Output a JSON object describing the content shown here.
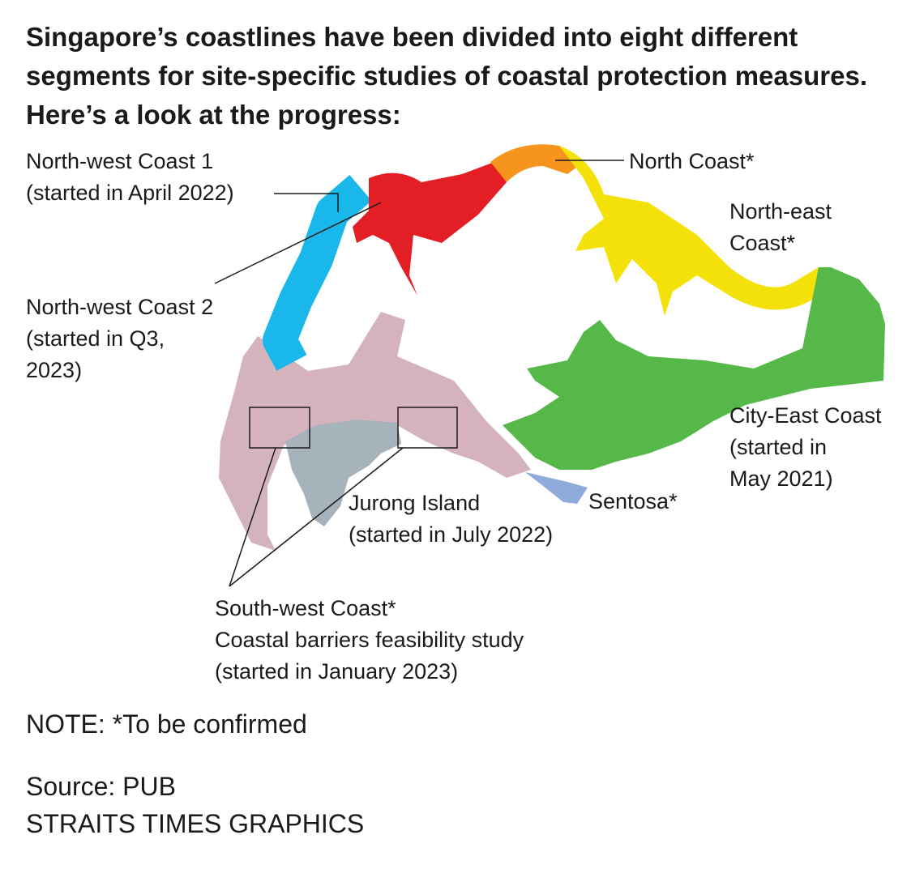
{
  "title": "Singapore’s coastlines have been divided into eight different segments for site-specific studies of coastal protection measures. Here’s a look at the progress:",
  "segments": {
    "nw1": {
      "name": "North-west Coast 1",
      "status": "(started in April 2022)",
      "color": "#1ab8ea"
    },
    "nw2": {
      "name": "North-west Coast 2",
      "status1": "(started in Q3,",
      "status2": "2023)",
      "color": "#e31e24"
    },
    "north": {
      "name": "North Coast*",
      "color": "#f7941d"
    },
    "ne": {
      "name1": "North-east",
      "name2": "Coast*",
      "color": "#f5e10a"
    },
    "city": {
      "name": "City-East Coast",
      "status1": "(started in",
      "status2": "May 2021)",
      "color": "#55b848"
    },
    "sentosa": {
      "name": "Sentosa*",
      "color": "#8fabd9"
    },
    "jurong": {
      "name": "Jurong Island",
      "status": "(started in July 2022)",
      "color": "#a7b3bb"
    },
    "sw": {
      "name": "South-west Coast*",
      "desc": "Coastal barriers feasibility study",
      "status": "(started in January 2023)",
      "color": "#d4b3bd"
    }
  },
  "note": "NOTE: *To be confirmed",
  "source": "Source: PUB",
  "credit": "STRAITS TIMES GRAPHICS"
}
